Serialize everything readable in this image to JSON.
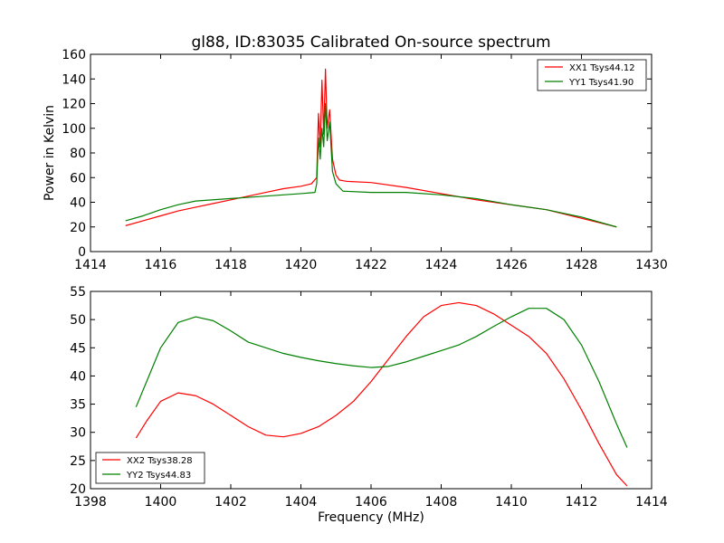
{
  "chart_data": [
    {
      "type": "line",
      "title": "gl88, ID:83035 Calibrated On-source spectrum",
      "xlabel": "",
      "ylabel": "Power in Kelvin",
      "xlim": [
        1414,
        1430
      ],
      "ylim": [
        0,
        160
      ],
      "xticks": [
        "1414",
        "1416",
        "1418",
        "1420",
        "1422",
        "1424",
        "1426",
        "1428",
        "1430"
      ],
      "yticks": [
        "0",
        "20",
        "40",
        "60",
        "80",
        "100",
        "120",
        "140",
        "160"
      ],
      "grid": false,
      "legend_position": "top-right",
      "series": [
        {
          "name": "XX1 Tsys44.12",
          "color": "#ff0000",
          "points": [
            [
              1415,
              21
            ],
            [
              1415.5,
              25
            ],
            [
              1416,
              29
            ],
            [
              1416.5,
              33
            ],
            [
              1417,
              36
            ],
            [
              1417.5,
              39
            ],
            [
              1418,
              42
            ],
            [
              1418.5,
              45
            ],
            [
              1419,
              48
            ],
            [
              1419.5,
              51
            ],
            [
              1420,
              53
            ],
            [
              1420.3,
              55
            ],
            [
              1420.45,
              60
            ],
            [
              1420.5,
              112
            ],
            [
              1420.55,
              85
            ],
            [
              1420.6,
              139
            ],
            [
              1420.65,
              95
            ],
            [
              1420.7,
              148
            ],
            [
              1420.75,
              100
            ],
            [
              1420.82,
              115
            ],
            [
              1420.9,
              75
            ],
            [
              1421,
              62
            ],
            [
              1421.1,
              58
            ],
            [
              1421.3,
              57
            ],
            [
              1422,
              56
            ],
            [
              1423,
              52
            ],
            [
              1424,
              47
            ],
            [
              1425,
              42
            ],
            [
              1426,
              38
            ],
            [
              1427,
              34
            ],
            [
              1428,
              27
            ],
            [
              1429,
              20
            ]
          ]
        },
        {
          "name": "YY1 Tsys41.90",
          "color": "#008000",
          "points": [
            [
              1415,
              25
            ],
            [
              1415.5,
              29
            ],
            [
              1416,
              34
            ],
            [
              1416.5,
              38
            ],
            [
              1417,
              41
            ],
            [
              1417.5,
              42
            ],
            [
              1418,
              43
            ],
            [
              1418.5,
              44
            ],
            [
              1419,
              45
            ],
            [
              1419.5,
              46
            ],
            [
              1420,
              47
            ],
            [
              1420.4,
              48
            ],
            [
              1420.45,
              55
            ],
            [
              1420.5,
              92
            ],
            [
              1420.55,
              75
            ],
            [
              1420.6,
              100
            ],
            [
              1420.65,
              85
            ],
            [
              1420.7,
              120
            ],
            [
              1420.75,
              90
            ],
            [
              1420.82,
              105
            ],
            [
              1420.9,
              65
            ],
            [
              1421,
              55
            ],
            [
              1421.2,
              49
            ],
            [
              1422,
              48
            ],
            [
              1423,
              48
            ],
            [
              1424,
              46
            ],
            [
              1425,
              43
            ],
            [
              1426,
              38
            ],
            [
              1427,
              34
            ],
            [
              1428,
              28
            ],
            [
              1429,
              20
            ]
          ]
        }
      ]
    },
    {
      "type": "line",
      "title": "",
      "xlabel": "Frequency (MHz)",
      "ylabel": "",
      "xlim": [
        1398,
        1414
      ],
      "ylim": [
        20,
        55
      ],
      "xticks": [
        "1398",
        "1400",
        "1402",
        "1404",
        "1406",
        "1408",
        "1410",
        "1412",
        "1414"
      ],
      "yticks": [
        "20",
        "25",
        "30",
        "35",
        "40",
        "45",
        "50",
        "55"
      ],
      "grid": false,
      "legend_position": "bottom-left",
      "series": [
        {
          "name": "XX2 Tsys38.28",
          "color": "#ff0000",
          "points": [
            [
              1399.3,
              29
            ],
            [
              1399.6,
              32
            ],
            [
              1400,
              35.5
            ],
            [
              1400.5,
              37
            ],
            [
              1401,
              36.5
            ],
            [
              1401.5,
              35
            ],
            [
              1402,
              33
            ],
            [
              1402.5,
              31
            ],
            [
              1403,
              29.5
            ],
            [
              1403.5,
              29.2
            ],
            [
              1404,
              29.8
            ],
            [
              1404.5,
              31
            ],
            [
              1405,
              33
            ],
            [
              1405.5,
              35.5
            ],
            [
              1406,
              39
            ],
            [
              1406.5,
              43
            ],
            [
              1407,
              47
            ],
            [
              1407.5,
              50.5
            ],
            [
              1408,
              52.5
            ],
            [
              1408.5,
              53
            ],
            [
              1409,
              52.5
            ],
            [
              1409.5,
              51
            ],
            [
              1410,
              49
            ],
            [
              1410.5,
              47
            ],
            [
              1411,
              44
            ],
            [
              1411.5,
              39.5
            ],
            [
              1412,
              34
            ],
            [
              1412.5,
              28
            ],
            [
              1413,
              22.5
            ],
            [
              1413.3,
              20.5
            ]
          ]
        },
        {
          "name": "YY2 Tsys44.83",
          "color": "#008000",
          "points": [
            [
              1399.3,
              34.5
            ],
            [
              1399.6,
              39
            ],
            [
              1400,
              45
            ],
            [
              1400.5,
              49.5
            ],
            [
              1401,
              50.5
            ],
            [
              1401.5,
              49.8
            ],
            [
              1402,
              48
            ],
            [
              1402.5,
              46
            ],
            [
              1403,
              45
            ],
            [
              1403.5,
              44
            ],
            [
              1404,
              43.3
            ],
            [
              1404.5,
              42.7
            ],
            [
              1405,
              42.2
            ],
            [
              1405.5,
              41.8
            ],
            [
              1406,
              41.5
            ],
            [
              1406.5,
              41.7
            ],
            [
              1407,
              42.5
            ],
            [
              1407.5,
              43.5
            ],
            [
              1408,
              44.5
            ],
            [
              1408.5,
              45.5
            ],
            [
              1409,
              47
            ],
            [
              1409.5,
              48.8
            ],
            [
              1410,
              50.5
            ],
            [
              1410.5,
              52
            ],
            [
              1411,
              52
            ],
            [
              1411.5,
              50
            ],
            [
              1412,
              45.5
            ],
            [
              1412.5,
              39
            ],
            [
              1413,
              31.5
            ],
            [
              1413.3,
              27.3
            ]
          ]
        }
      ]
    }
  ]
}
